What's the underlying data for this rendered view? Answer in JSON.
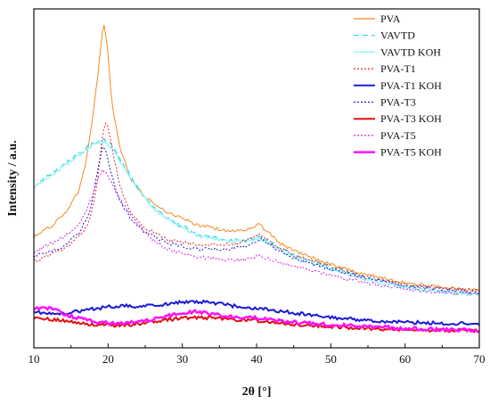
{
  "chart_data": {
    "type": "line",
    "xlabel": "2θ [°]",
    "ylabel": "Intensity / a.u.",
    "xlim": [
      10,
      70
    ],
    "ylim": [
      0,
      100
    ],
    "x_ticks": [
      10,
      20,
      30,
      40,
      50,
      60,
      70
    ],
    "y_tick_labels": false,
    "grid": false,
    "legend_position": "top-right",
    "series": [
      {
        "name": "PVA",
        "color": "#f28a1e",
        "dash": "solid",
        "width": 1,
        "points": [
          [
            10,
            28
          ],
          [
            12,
            31
          ],
          [
            14,
            35
          ],
          [
            16,
            43
          ],
          [
            17,
            52
          ],
          [
            18,
            68
          ],
          [
            18.8,
            85
          ],
          [
            19.4,
            98
          ],
          [
            19.9,
            90
          ],
          [
            20.5,
            72
          ],
          [
            21.5,
            58
          ],
          [
            23,
            47
          ],
          [
            25,
            41
          ],
          [
            28,
            36
          ],
          [
            32,
            32
          ],
          [
            36,
            30
          ],
          [
            38.5,
            30
          ],
          [
            40.3,
            32
          ],
          [
            41.5,
            30
          ],
          [
            43,
            26
          ],
          [
            46,
            22.5
          ],
          [
            50,
            19
          ],
          [
            55,
            15.5
          ],
          [
            60,
            13
          ],
          [
            65,
            11.5
          ],
          [
            70,
            10.5
          ]
        ]
      },
      {
        "name": "VAVTD",
        "color": "#22d4e8",
        "dash": "6,4",
        "width": 1.2,
        "points": [
          [
            10,
            44.5
          ],
          [
            12,
            48
          ],
          [
            14,
            51.5
          ],
          [
            16,
            55
          ],
          [
            18,
            58.5
          ],
          [
            19.5,
            60
          ],
          [
            20.5,
            58
          ],
          [
            22,
            52
          ],
          [
            24,
            44
          ],
          [
            26,
            38
          ],
          [
            28,
            34
          ],
          [
            32,
            29
          ],
          [
            36,
            27
          ],
          [
            38.5,
            27
          ],
          [
            40.3,
            28
          ],
          [
            42,
            26
          ],
          [
            45,
            22
          ],
          [
            50,
            18
          ],
          [
            55,
            14.5
          ],
          [
            60,
            12
          ],
          [
            65,
            10.5
          ],
          [
            70,
            9.5
          ]
        ]
      },
      {
        "name": "VAVTD KOH",
        "color": "#8af2f2",
        "dash": "solid",
        "width": 1.2,
        "points": [
          [
            10,
            44
          ],
          [
            12,
            47.5
          ],
          [
            14,
            51
          ],
          [
            16,
            54.5
          ],
          [
            18,
            58
          ],
          [
            19.5,
            59
          ],
          [
            20.5,
            57
          ],
          [
            22,
            51
          ],
          [
            24,
            43.5
          ],
          [
            26,
            37.5
          ],
          [
            28,
            33.5
          ],
          [
            32,
            28.5
          ],
          [
            36,
            26.5
          ],
          [
            38.5,
            26.5
          ],
          [
            40.3,
            27.5
          ],
          [
            42,
            25.5
          ],
          [
            45,
            21.5
          ],
          [
            50,
            17.5
          ],
          [
            55,
            14
          ],
          [
            60,
            11.5
          ],
          [
            65,
            10
          ],
          [
            70,
            9
          ]
        ]
      },
      {
        "name": "PVA-T1",
        "color": "#e8282c",
        "dash": "2,2",
        "width": 1,
        "points": [
          [
            10,
            20
          ],
          [
            12,
            22
          ],
          [
            14,
            24
          ],
          [
            16,
            28
          ],
          [
            17.5,
            33
          ],
          [
            18.5,
            45
          ],
          [
            19.3,
            62
          ],
          [
            19.8,
            66
          ],
          [
            20.5,
            58
          ],
          [
            21.5,
            45
          ],
          [
            23,
            36
          ],
          [
            25,
            31
          ],
          [
            28,
            27
          ],
          [
            32,
            25.5
          ],
          [
            36,
            25.5
          ],
          [
            38.5,
            26.5
          ],
          [
            40.5,
            29
          ],
          [
            42,
            26
          ],
          [
            45,
            22
          ],
          [
            50,
            18.5
          ],
          [
            55,
            15
          ],
          [
            60,
            12.5
          ],
          [
            65,
            11.5
          ],
          [
            70,
            10.5
          ]
        ]
      },
      {
        "name": "PVA-T1 KOH",
        "color": "#1a1ad8",
        "dash": "solid",
        "width": 2,
        "points": [
          [
            10,
            3.5
          ],
          [
            12,
            3
          ],
          [
            14,
            3.2
          ],
          [
            16,
            3.8
          ],
          [
            18,
            4.5
          ],
          [
            20,
            5.2
          ],
          [
            22,
            5.5
          ],
          [
            24,
            5.3
          ],
          [
            26,
            5.6
          ],
          [
            28,
            6.2
          ],
          [
            30,
            6.8
          ],
          [
            32,
            7
          ],
          [
            34,
            6.5
          ],
          [
            36,
            5.8
          ],
          [
            38,
            5.2
          ],
          [
            40,
            4.8
          ],
          [
            42,
            4.3
          ],
          [
            45,
            3.2
          ],
          [
            50,
            1.8
          ],
          [
            55,
            0.8
          ],
          [
            60,
            0.2
          ],
          [
            65,
            -0.2
          ],
          [
            70,
            -0.3
          ]
        ]
      },
      {
        "name": "PVA-T3",
        "color": "#1a1ad8",
        "dash": "2,2",
        "width": 1,
        "points": [
          [
            10,
            21.5
          ],
          [
            12,
            23
          ],
          [
            14,
            25
          ],
          [
            16,
            29
          ],
          [
            17.5,
            36
          ],
          [
            18.5,
            48
          ],
          [
            19.3,
            58
          ],
          [
            19.8,
            55
          ],
          [
            20.5,
            48
          ],
          [
            21.5,
            40
          ],
          [
            23,
            34
          ],
          [
            25,
            29.5
          ],
          [
            28,
            26
          ],
          [
            32,
            24
          ],
          [
            36,
            24
          ],
          [
            38.5,
            25
          ],
          [
            40.5,
            27.5
          ],
          [
            42,
            25
          ],
          [
            45,
            21
          ],
          [
            50,
            17.5
          ],
          [
            55,
            14.5
          ],
          [
            60,
            12
          ],
          [
            65,
            10.8
          ],
          [
            70,
            10
          ]
        ]
      },
      {
        "name": "PVA-T3 KOH",
        "color": "#e01010",
        "dash": "solid",
        "width": 2,
        "points": [
          [
            10,
            1.5
          ],
          [
            12,
            1.3
          ],
          [
            14,
            0.6
          ],
          [
            16,
            0
          ],
          [
            18,
            -0.5
          ],
          [
            20,
            -0.8
          ],
          [
            22,
            -0.8
          ],
          [
            24,
            -0.3
          ],
          [
            26,
            0.3
          ],
          [
            28,
            1
          ],
          [
            30,
            1.6
          ],
          [
            32,
            1.8
          ],
          [
            34,
            1.6
          ],
          [
            36,
            1.3
          ],
          [
            38,
            1
          ],
          [
            40,
            0.8
          ],
          [
            42,
            0.3
          ],
          [
            45,
            -0.4
          ],
          [
            50,
            -1.2
          ],
          [
            55,
            -1.8
          ],
          [
            60,
            -2.2
          ],
          [
            65,
            -2.4
          ],
          [
            70,
            -2.5
          ]
        ]
      },
      {
        "name": "PVA-T5",
        "color": "#e020e0",
        "dash": "2,2",
        "width": 1,
        "points": [
          [
            10,
            23
          ],
          [
            12,
            25.5
          ],
          [
            14,
            28
          ],
          [
            16,
            32
          ],
          [
            17.5,
            39
          ],
          [
            18.5,
            46
          ],
          [
            19.3,
            50
          ],
          [
            20,
            48
          ],
          [
            21,
            43
          ],
          [
            22.5,
            37
          ],
          [
            24,
            32
          ],
          [
            26,
            27
          ],
          [
            28,
            24
          ],
          [
            32,
            21.5
          ],
          [
            36,
            20.5
          ],
          [
            38.5,
            20.5
          ],
          [
            40.5,
            22
          ],
          [
            42,
            20.5
          ],
          [
            45,
            18.5
          ],
          [
            50,
            15.5
          ],
          [
            55,
            13
          ],
          [
            60,
            11
          ],
          [
            65,
            10
          ],
          [
            70,
            9.5
          ]
        ]
      },
      {
        "name": "PVA-T5  KOH",
        "color": "#ff10ff",
        "dash": "solid",
        "width": 2.5,
        "points": [
          [
            10,
            4
          ],
          [
            11,
            5.2
          ],
          [
            12,
            4.8
          ],
          [
            13,
            4
          ],
          [
            14,
            3
          ],
          [
            16,
            1.5
          ],
          [
            18,
            0.5
          ],
          [
            20,
            0
          ],
          [
            22,
            0
          ],
          [
            24,
            0.5
          ],
          [
            26,
            1.2
          ],
          [
            28,
            2.2
          ],
          [
            30,
            3
          ],
          [
            31.5,
            3.6
          ],
          [
            32.5,
            3.6
          ],
          [
            34,
            3
          ],
          [
            36,
            2.2
          ],
          [
            38,
            1.8
          ],
          [
            40,
            1.6
          ],
          [
            42,
            1
          ],
          [
            45,
            0.2
          ],
          [
            50,
            -0.6
          ],
          [
            55,
            -1.2
          ],
          [
            60,
            -1.8
          ],
          [
            65,
            -2.2
          ],
          [
            70,
            -2.4
          ]
        ]
      }
    ]
  }
}
